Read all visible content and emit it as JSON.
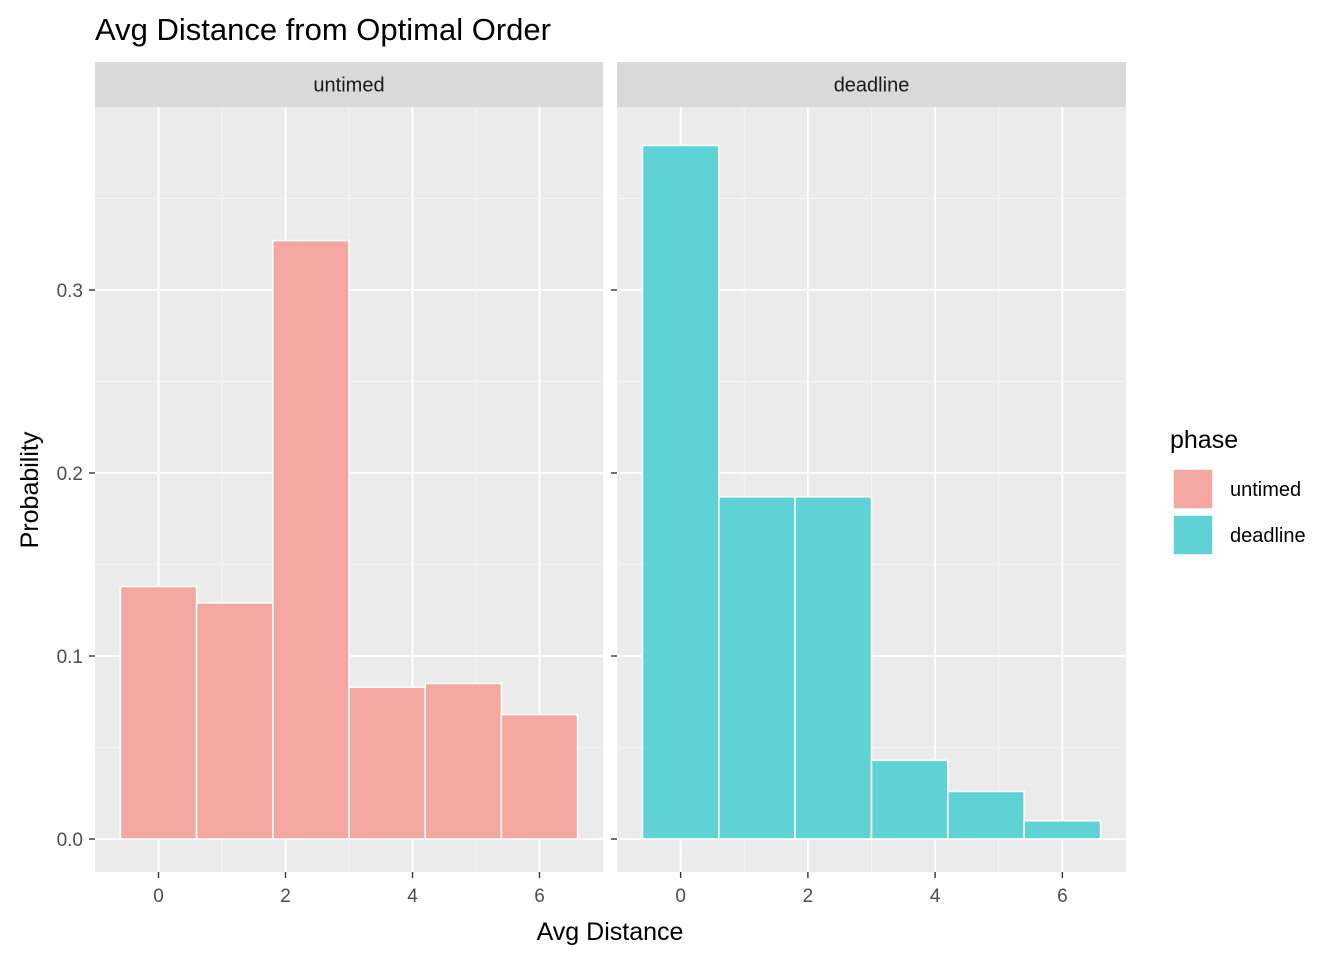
{
  "chart_data": {
    "type": "bar",
    "title": "Avg Distance from Optimal Order",
    "xlabel": "Avg Distance",
    "ylabel": "Probability",
    "xlim": [
      -1,
      7
    ],
    "ylim": [
      -0.017,
      0.39
    ],
    "x_ticks": [
      0,
      2,
      4,
      6
    ],
    "y_ticks": [
      0.0,
      0.1,
      0.2,
      0.3
    ],
    "y_tick_labels": [
      "0.0",
      "0.1",
      "0.2",
      "0.3"
    ],
    "x_tick_labels": [
      "0",
      "2",
      "4",
      "6"
    ],
    "grid": true,
    "legend": {
      "title": "phase",
      "position": "right",
      "entries": [
        {
          "label": "untimed",
          "color": "#F4A6A0"
        },
        {
          "label": "deadline",
          "color": "#5FD2D5"
        }
      ]
    },
    "bin_edges": [
      -0.6,
      0.6,
      1.8,
      3.0,
      4.2,
      5.4,
      6.6
    ],
    "panels": [
      {
        "strip_label": "untimed",
        "color": "#F4A6A0",
        "values": [
          0.138,
          0.129,
          0.327,
          0.083,
          0.085,
          0.068
        ]
      },
      {
        "strip_label": "deadline",
        "color": "#5FD2D5",
        "values": [
          0.379,
          0.187,
          0.187,
          0.043,
          0.026,
          0.01
        ]
      }
    ]
  }
}
